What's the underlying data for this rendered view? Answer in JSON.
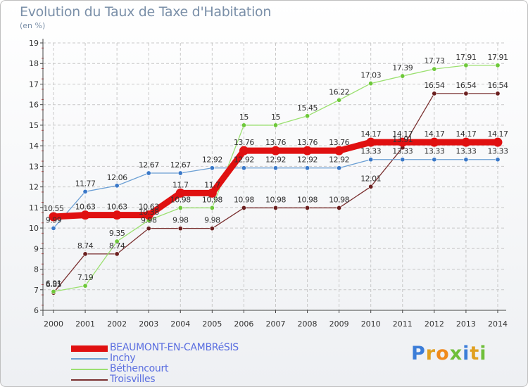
{
  "header": {
    "title": "Evolution du Taux de Taxe d'Habitation",
    "unit": "(en %)"
  },
  "logo": {
    "text": "Proxiti"
  },
  "colors": {
    "axis": "#444444",
    "grid": "#c8c8c8",
    "labels": "#333333"
  },
  "chart_data": {
    "type": "line",
    "x": [
      2000,
      2001,
      2002,
      2003,
      2004,
      2005,
      2006,
      2007,
      2008,
      2009,
      2010,
      2011,
      2012,
      2013,
      2014
    ],
    "ylim": [
      6,
      19
    ],
    "yticks": [
      6,
      7,
      8,
      9,
      10,
      11,
      12,
      13,
      14,
      15,
      16,
      17,
      18,
      19
    ],
    "grid": true,
    "legend_position": "bottom-left",
    "series": [
      {
        "name": "BEAUMONT-EN-CAMBRéSIS",
        "color": "#e01010",
        "point_color": "#e01010",
        "width": "thick",
        "values": [
          10.55,
          10.63,
          10.63,
          10.63,
          11.7,
          11.7,
          13.76,
          13.76,
          13.76,
          13.76,
          14.17,
          14.17,
          14.17,
          14.17,
          14.17
        ]
      },
      {
        "name": "Inchy",
        "color": "#6b9fd4",
        "point_color": "#3a78c8",
        "width": "thin",
        "values": [
          9.99,
          11.77,
          12.06,
          12.67,
          12.67,
          12.92,
          12.92,
          12.92,
          12.92,
          12.92,
          13.33,
          13.33,
          13.33,
          13.33,
          13.33
        ]
      },
      {
        "name": "Béthencourt",
        "color": "#9be070",
        "point_color": "#6ec83a",
        "width": "thin",
        "values": [
          6.91,
          7.19,
          9.35,
          10.38,
          10.98,
          10.98,
          15,
          15,
          15.45,
          16.22,
          17.03,
          17.39,
          17.73,
          17.91,
          17.91
        ]
      },
      {
        "name": "Troisvilles",
        "color": "#7a3030",
        "point_color": "#6b1f1f",
        "width": "thin",
        "values": [
          6.85,
          8.74,
          8.74,
          9.98,
          9.98,
          9.98,
          10.98,
          10.98,
          10.98,
          10.98,
          12.01,
          13.91,
          16.54,
          16.54,
          16.54
        ]
      }
    ]
  }
}
